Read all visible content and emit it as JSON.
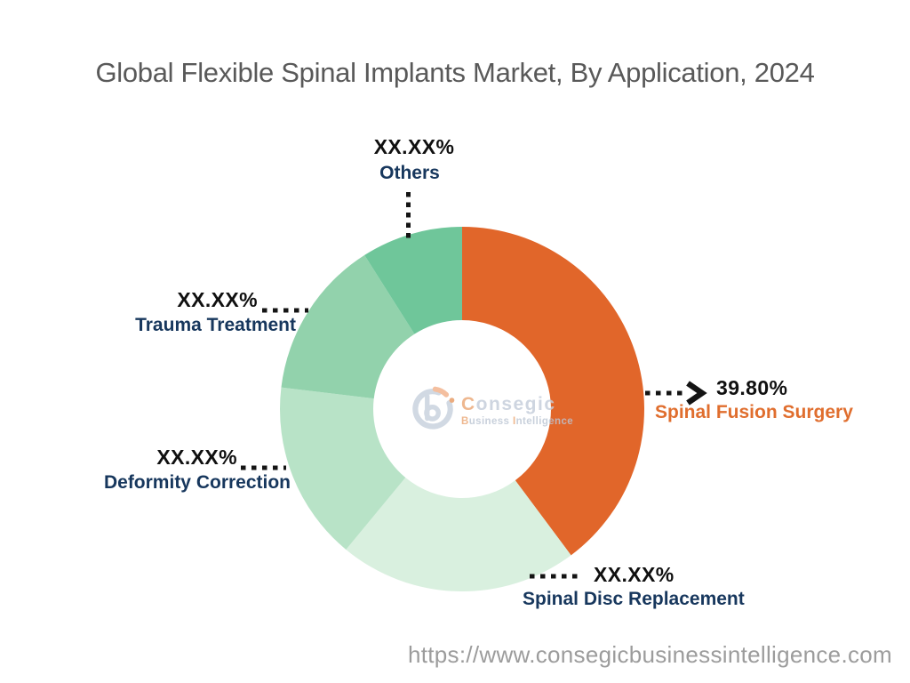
{
  "header": {
    "title": "Global Flexible Spinal Implants Market, By Application, 2024"
  },
  "footer": {
    "url": "https://www.consegicbusinessintelligence.com"
  },
  "logo": {
    "name": "Consegic",
    "tagline_word1": "Business",
    "tagline_word2": "Intelligence"
  },
  "chart_data": {
    "type": "pie",
    "subtype": "donut",
    "title": "Global Flexible Spinal Implants Market, By Application, 2024",
    "start_angle_deg": 0,
    "direction": "clockwise",
    "hole": true,
    "legend": "none",
    "segments": [
      {
        "label": "Spinal Fusion Surgery",
        "display_value": "39.80%",
        "value_pct": 39.8,
        "color": "#E1662A",
        "label_color": "#E06E2E"
      },
      {
        "label": "Spinal Disc Replacement",
        "display_value": "XX.XX%",
        "value_pct": 21.2,
        "color": "#D9F0DF",
        "label_color": "#17375D"
      },
      {
        "label": "Deformity Correction",
        "display_value": "XX.XX%",
        "value_pct": 15.9,
        "color": "#B8E3C7",
        "label_color": "#17375D"
      },
      {
        "label": "Trauma Treatment",
        "display_value": "XX.XX%",
        "value_pct": 14.1,
        "color": "#92D2AC",
        "label_color": "#17375D"
      },
      {
        "label": "Others",
        "display_value": "XX.XX%",
        "value_pct": 9.0,
        "color": "#6FC69A",
        "label_color": "#17375D"
      }
    ]
  }
}
